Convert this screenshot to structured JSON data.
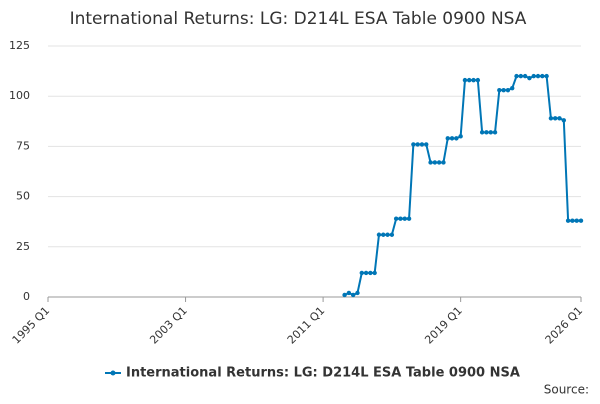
{
  "chart_data": {
    "type": "line",
    "title": "International Returns: LG: D214L ESA Table 0900 NSA",
    "source": "Source:",
    "categories": [
      "1995 Q1",
      null,
      null,
      null,
      null,
      null,
      null,
      null,
      null,
      null,
      null,
      null,
      null,
      null,
      null,
      null,
      null,
      null,
      null,
      null,
      null,
      null,
      null,
      null,
      null,
      null,
      null,
      null,
      null,
      null,
      null,
      null,
      "2003 Q1",
      null,
      null,
      null,
      null,
      null,
      null,
      null,
      null,
      null,
      null,
      null,
      null,
      null,
      null,
      null,
      null,
      null,
      null,
      null,
      null,
      null,
      null,
      null,
      null,
      null,
      null,
      null,
      null,
      null,
      null,
      null,
      "2011 Q1",
      null,
      null,
      null,
      null,
      null,
      null,
      null,
      null,
      null,
      null,
      null,
      null,
      null,
      null,
      null,
      null,
      null,
      null,
      null,
      null,
      null,
      null,
      null,
      null,
      null,
      null,
      null,
      null,
      null,
      null,
      null,
      "2019 Q1",
      null,
      null,
      null,
      null,
      null,
      null,
      null,
      null,
      null,
      null,
      null,
      null,
      null,
      null,
      null,
      null,
      null,
      null,
      null,
      null,
      null,
      null,
      null,
      null,
      null,
      null,
      null,
      "2026 Q1"
    ],
    "series": [
      {
        "name": "International Returns: LG: D214L ESA Table 0900 NSA",
        "color": "#0076b6",
        "values": [
          null,
          null,
          null,
          null,
          null,
          null,
          null,
          null,
          null,
          null,
          null,
          null,
          null,
          null,
          null,
          null,
          null,
          null,
          null,
          null,
          null,
          null,
          null,
          null,
          null,
          null,
          null,
          null,
          null,
          null,
          null,
          null,
          null,
          null,
          null,
          null,
          null,
          null,
          null,
          null,
          null,
          null,
          null,
          null,
          null,
          null,
          null,
          null,
          null,
          null,
          null,
          null,
          null,
          null,
          null,
          null,
          null,
          null,
          null,
          null,
          null,
          null,
          null,
          null,
          null,
          null,
          null,
          null,
          null,
          1,
          2,
          1,
          2,
          12,
          12,
          12,
          12,
          31,
          31,
          31,
          31,
          39,
          39,
          39,
          39,
          76,
          76,
          76,
          76,
          67,
          67,
          67,
          67,
          79,
          79,
          79,
          80,
          108,
          108,
          108,
          108,
          82,
          82,
          82,
          82,
          103,
          103,
          103,
          104,
          110,
          110,
          110,
          109,
          110,
          110,
          110,
          110,
          89,
          89,
          89,
          88,
          38,
          38,
          38,
          38
        ]
      }
    ],
    "ylim": [
      0,
      125
    ],
    "yticks": [
      0,
      25,
      50,
      75,
      100,
      125
    ],
    "grid": true
  }
}
